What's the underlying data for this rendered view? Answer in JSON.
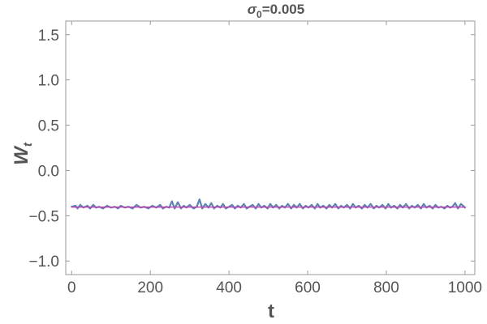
{
  "chart_data": {
    "type": "line",
    "title_symbol": "σ",
    "title_subscript": "0",
    "title_suffix": "=0.005",
    "xlabel": "t",
    "ylabel_main": "W",
    "ylabel_subscript": "t",
    "xlim": [
      -15,
      1025
    ],
    "ylim": [
      -1.15,
      1.65
    ],
    "x_ticks": [
      0,
      200,
      400,
      600,
      800,
      1000
    ],
    "x_tick_labels": [
      "0",
      "200",
      "400",
      "600",
      "800",
      "1000"
    ],
    "y_ticks": [
      -1.0,
      -0.5,
      0.0,
      0.5,
      1.0,
      1.5
    ],
    "y_tick_labels": [
      "−1.0",
      "−0.5",
      "0.0",
      "0.5",
      "1.0",
      "1.5"
    ],
    "grid": false,
    "colors": {
      "frame": "#999999",
      "text": "#555555",
      "series_noisy": "#5b84b1",
      "series_mean": "#c53bb5"
    },
    "series": [
      {
        "role": "mean",
        "color": "#c53bb5",
        "x": [
          0,
          1000
        ],
        "y": [
          -0.405,
          -0.405
        ]
      },
      {
        "role": "noisy",
        "color": "#5b84b1",
        "x": [
          0,
          10,
          15,
          22,
          30,
          40,
          47,
          55,
          62,
          70,
          80,
          90,
          100,
          110,
          118,
          125,
          135,
          145,
          155,
          165,
          175,
          185,
          195,
          205,
          215,
          225,
          232,
          240,
          248,
          255,
          262,
          270,
          278,
          285,
          292,
          300,
          310,
          318,
          325,
          332,
          340,
          348,
          355,
          362,
          370,
          378,
          385,
          392,
          400,
          408,
          415,
          422,
          430,
          438,
          445,
          452,
          460,
          468,
          475,
          482,
          490,
          498,
          505,
          512,
          520,
          528,
          535,
          542,
          550,
          558,
          565,
          572,
          580,
          588,
          595,
          602,
          610,
          618,
          625,
          632,
          640,
          648,
          655,
          662,
          670,
          678,
          685,
          692,
          700,
          708,
          715,
          722,
          730,
          738,
          745,
          752,
          760,
          768,
          775,
          782,
          790,
          798,
          805,
          812,
          820,
          828,
          835,
          842,
          850,
          858,
          865,
          872,
          880,
          888,
          895,
          902,
          910,
          918,
          925,
          932,
          940,
          948,
          955,
          962,
          968,
          975,
          982,
          990,
          1000
        ],
        "y": [
          -0.4,
          -0.39,
          -0.42,
          -0.38,
          -0.41,
          -0.39,
          -0.42,
          -0.38,
          -0.41,
          -0.4,
          -0.42,
          -0.39,
          -0.41,
          -0.4,
          -0.42,
          -0.39,
          -0.41,
          -0.4,
          -0.42,
          -0.38,
          -0.41,
          -0.4,
          -0.42,
          -0.39,
          -0.41,
          -0.38,
          -0.42,
          -0.4,
          -0.41,
          -0.34,
          -0.42,
          -0.35,
          -0.42,
          -0.39,
          -0.41,
          -0.38,
          -0.42,
          -0.4,
          -0.32,
          -0.42,
          -0.37,
          -0.41,
          -0.36,
          -0.42,
          -0.39,
          -0.41,
          -0.37,
          -0.42,
          -0.4,
          -0.38,
          -0.42,
          -0.39,
          -0.41,
          -0.37,
          -0.42,
          -0.4,
          -0.38,
          -0.42,
          -0.37,
          -0.41,
          -0.39,
          -0.42,
          -0.37,
          -0.41,
          -0.38,
          -0.42,
          -0.39,
          -0.41,
          -0.37,
          -0.42,
          -0.38,
          -0.41,
          -0.37,
          -0.42,
          -0.39,
          -0.41,
          -0.38,
          -0.42,
          -0.37,
          -0.41,
          -0.39,
          -0.42,
          -0.38,
          -0.41,
          -0.37,
          -0.42,
          -0.39,
          -0.41,
          -0.38,
          -0.42,
          -0.37,
          -0.41,
          -0.39,
          -0.42,
          -0.38,
          -0.41,
          -0.37,
          -0.42,
          -0.39,
          -0.41,
          -0.38,
          -0.42,
          -0.37,
          -0.41,
          -0.39,
          -0.42,
          -0.38,
          -0.41,
          -0.37,
          -0.42,
          -0.39,
          -0.41,
          -0.38,
          -0.42,
          -0.37,
          -0.41,
          -0.39,
          -0.42,
          -0.38,
          -0.41,
          -0.4,
          -0.42,
          -0.39,
          -0.41,
          -0.4,
          -0.36,
          -0.42,
          -0.37,
          -0.41
        ]
      }
    ]
  }
}
